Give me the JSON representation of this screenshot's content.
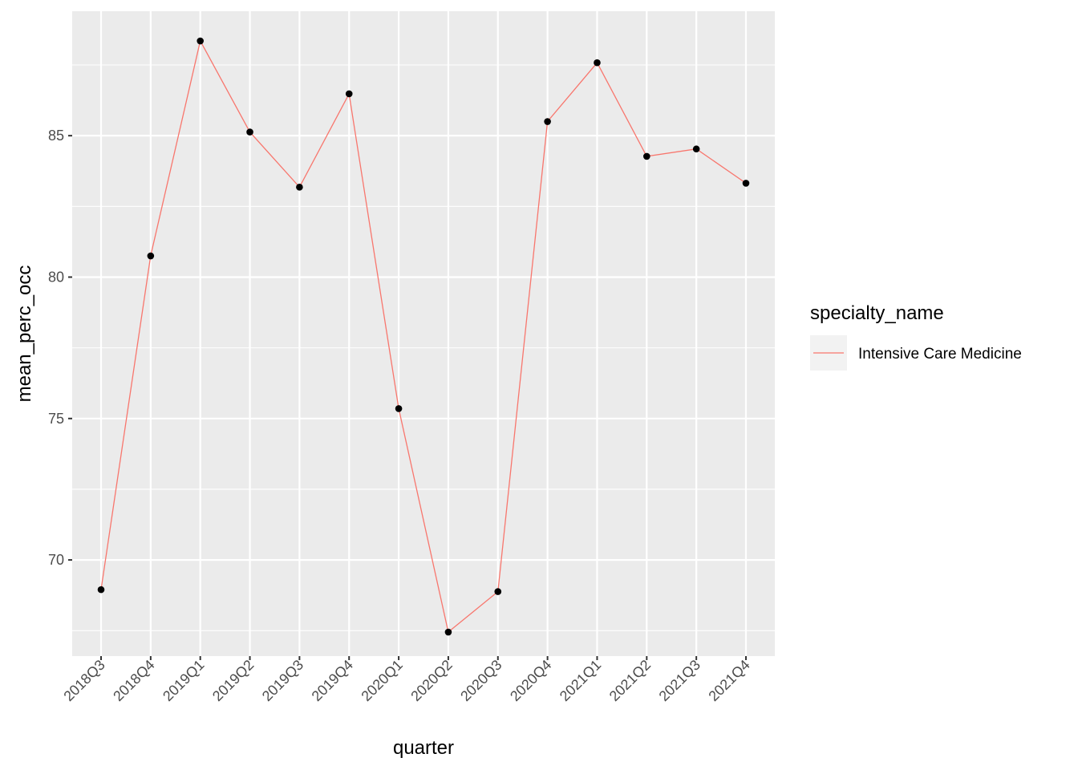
{
  "chart_data": {
    "type": "line",
    "xlabel": "quarter",
    "ylabel": "mean_perc_occ",
    "categories": [
      "2018Q3",
      "2018Q4",
      "2019Q1",
      "2019Q2",
      "2019Q3",
      "2019Q4",
      "2020Q1",
      "2020Q2",
      "2020Q3",
      "2020Q4",
      "2021Q1",
      "2021Q2",
      "2021Q3",
      "2021Q4"
    ],
    "series": [
      {
        "name": "Intensive Care Medicine",
        "values": [
          68.95,
          80.75,
          88.35,
          85.13,
          83.18,
          86.48,
          75.35,
          67.45,
          68.88,
          85.5,
          87.58,
          84.27,
          84.53,
          83.32
        ]
      }
    ],
    "ylim": [
      66.6,
      89.4
    ],
    "yticks": [
      70,
      75,
      80,
      85
    ],
    "yticklabels": [
      "70",
      "75",
      "80",
      "85"
    ],
    "legend": {
      "title": "specialty_name",
      "position": "right"
    },
    "grid": true,
    "colors": {
      "panel": "#ebebeb",
      "grid_major": "#ffffff",
      "line": "#f8766d",
      "point": "#000000",
      "legend_key_bg": "#f2f2f2"
    }
  }
}
